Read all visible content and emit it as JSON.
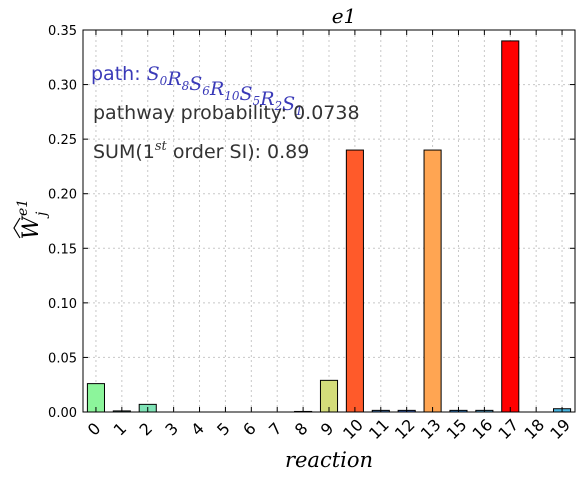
{
  "chart_data": {
    "type": "bar",
    "title": "e1",
    "xlabel": "reaction",
    "ylabel": "W_j^{e1}",
    "ylim": [
      0,
      0.35
    ],
    "yticks": [
      "0.00",
      "0.05",
      "0.10",
      "0.15",
      "0.20",
      "0.25",
      "0.30",
      "0.35"
    ],
    "grid": true,
    "categories": [
      "0",
      "1",
      "2",
      "3",
      "4",
      "5",
      "6",
      "7",
      "8",
      "9",
      "10",
      "11",
      "12",
      "13",
      "15",
      "16",
      "17",
      "18",
      "19"
    ],
    "values": [
      0.026,
      0.001,
      0.007,
      0.0,
      0.0,
      0.0,
      0.0,
      0.0,
      0.0005,
      0.029,
      0.24,
      0.0015,
      0.0015,
      0.24,
      0.0015,
      0.0015,
      0.34,
      0.0,
      0.003
    ],
    "colors": [
      "#8cf59b",
      "#6fe3c4",
      "#7fe3b6",
      "#ffffff",
      "#ffffff",
      "#ffffff",
      "#ffffff",
      "#ffffff",
      "#c8c8c8",
      "#d4dd7a",
      "#ff5a2a",
      "#4a7fc0",
      "#3f6fd0",
      "#ffa552",
      "#3a8fe0",
      "#5ab0e0",
      "#ff0000",
      "#ffffff",
      "#49b5e0"
    ],
    "annotations": {
      "path_prefix": "path: ",
      "path_formula": "S0R8S6R10S5R2S1",
      "probability": "pathway probability: 0.0738",
      "sum_prefix": "SUM(1",
      "sum_super": "st",
      "sum_suffix": " order SI): 0.89"
    },
    "annotation_colors": {
      "path": "#3a3ab8",
      "text": "#333333"
    }
  }
}
